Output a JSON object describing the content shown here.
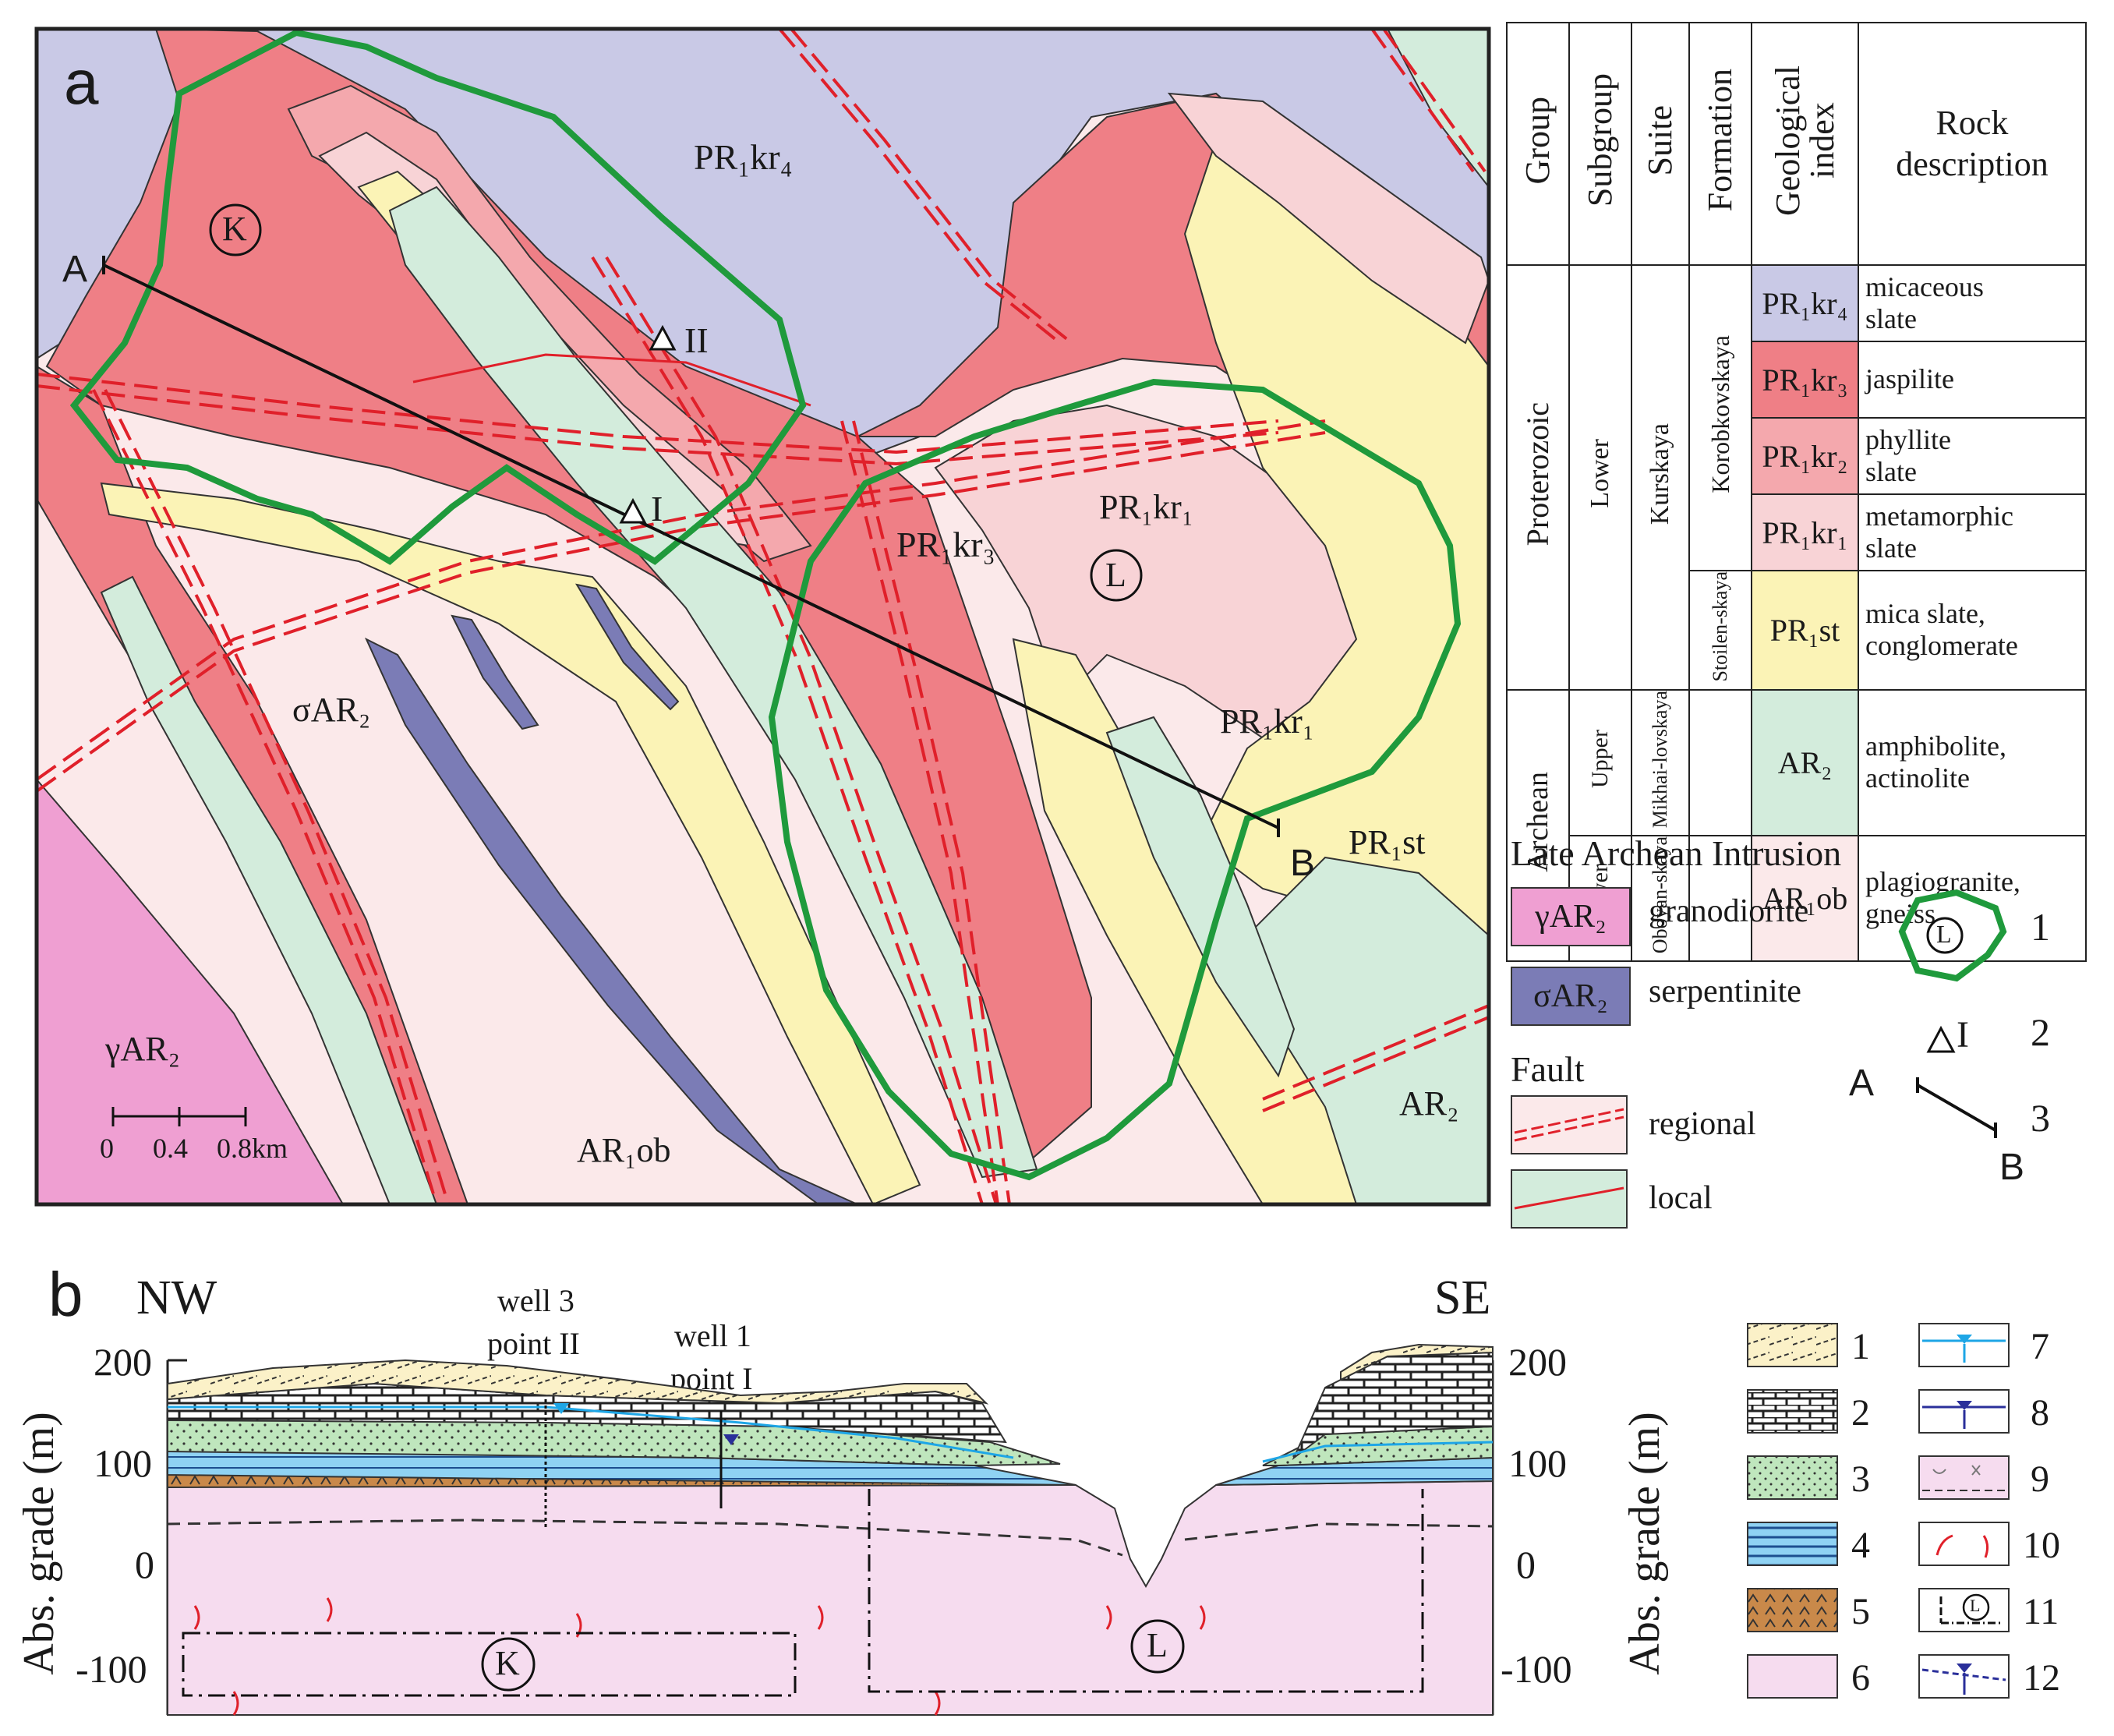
{
  "panel_a": {
    "label": "a",
    "map_labels": {
      "pr1kr4": "PR₁kr₄",
      "pr1kr3": "PR₁kr₃",
      "pr1kr1_left": "PR₁kr₁",
      "pr1kr1_right": "PR₁kr₁",
      "pr1st": "PR₁st",
      "sigma": "σAR₂",
      "gamma": "γAR₂",
      "ar1ob": "AR₁ob",
      "ar2": "AR₂",
      "k": "K",
      "l": "L",
      "point_i": "I",
      "point_ii": "II",
      "line_a": "A",
      "line_b": "B"
    },
    "scale_bar": {
      "labels": [
        "0",
        "0.4",
        "0.8km"
      ]
    }
  },
  "strat_table": {
    "headers": [
      "Group",
      "Subgroup",
      "Suite",
      "Formation",
      "Geological index",
      "Rock description"
    ],
    "groups": {
      "proterozoic": "Proterozoic",
      "archean": "Archean"
    },
    "subgroups": {
      "lower": "Lower",
      "upper": "Upper",
      "lower2": "Lower"
    },
    "suites": {
      "kurskaya": "Kurskaya",
      "mikhai": "Mikhai-lovskaya",
      "oboyan": "Oboyan-skaya"
    },
    "formations": {
      "korobkovskaya": "Korobkovskaya",
      "stoilen": "Stoilen-skaya"
    },
    "rows": [
      {
        "index": "PR₁kr₄",
        "desc1": "micaceous",
        "desc2": "slate",
        "color": "#c9c9e6"
      },
      {
        "index": "PR₁kr₃",
        "desc1": "jaspilite",
        "desc2": "",
        "color": "#ef7f86"
      },
      {
        "index": "PR₁kr₂",
        "desc1": "phyllite",
        "desc2": "slate",
        "color": "#f4a8ad"
      },
      {
        "index": "PR₁kr₁",
        "desc1": "metamorphic",
        "desc2": "slate",
        "color": "#f8d3d6"
      },
      {
        "index": "PR₁st",
        "desc1": "mica slate,",
        "desc2": "conglomerate",
        "color": "#fbf3b6"
      },
      {
        "index": "AR₂",
        "desc1": "amphibolite,",
        "desc2": "actinolite",
        "color": "#d3ecdc"
      },
      {
        "index": "AR₁ob",
        "desc1": "plagiogranite,",
        "desc2": "gneiss",
        "color": "#fbe9ea"
      }
    ]
  },
  "legend_a": {
    "intrusion_title": "Late Archean Intrusion",
    "gamma_box": "γAR₂",
    "gamma_label": "granodiorite",
    "sigma_box": "σAR₂",
    "sigma_label": "serpentinite",
    "fault_title": "Fault",
    "regional_label": "regional",
    "local_label": "local",
    "sym1_letter": "L",
    "sym1_num": "1",
    "sym2_label": "I",
    "sym2_num": "2",
    "sym3_a": "A",
    "sym3_b": "B",
    "sym3_num": "3"
  },
  "panel_b": {
    "label": "b",
    "nw": "NW",
    "se": "SE",
    "y_axis_label": "Abs. grade (m)",
    "y_ticks": [
      "200",
      "100",
      "0",
      "-100"
    ],
    "well3_line1": "well 3",
    "well3_line2": "point II",
    "well1_line1": "well 1",
    "well1_line2": "point I",
    "k": "K",
    "l": "L",
    "legend_numbers": [
      "1",
      "2",
      "3",
      "4",
      "5",
      "6",
      "7",
      "8",
      "9",
      "10",
      "11",
      "12"
    ],
    "legend_letter_11": "L"
  },
  "colors": {
    "kr4": "#c9c9e6",
    "kr3": "#ef7f86",
    "kr2": "#f4a8ad",
    "kr1": "#f8d3d6",
    "st": "#fbf3b6",
    "ar2": "#d3ecdc",
    "ar1ob": "#fbe9ea",
    "gamma": "#ef9fd2",
    "sigma": "#7b7cb6",
    "green_contour": "#1f9a3c",
    "fault": "#e0202a",
    "basement": "#f6dcef",
    "water_light": "#1ea6e6",
    "water_dark": "#2a2f9a"
  }
}
